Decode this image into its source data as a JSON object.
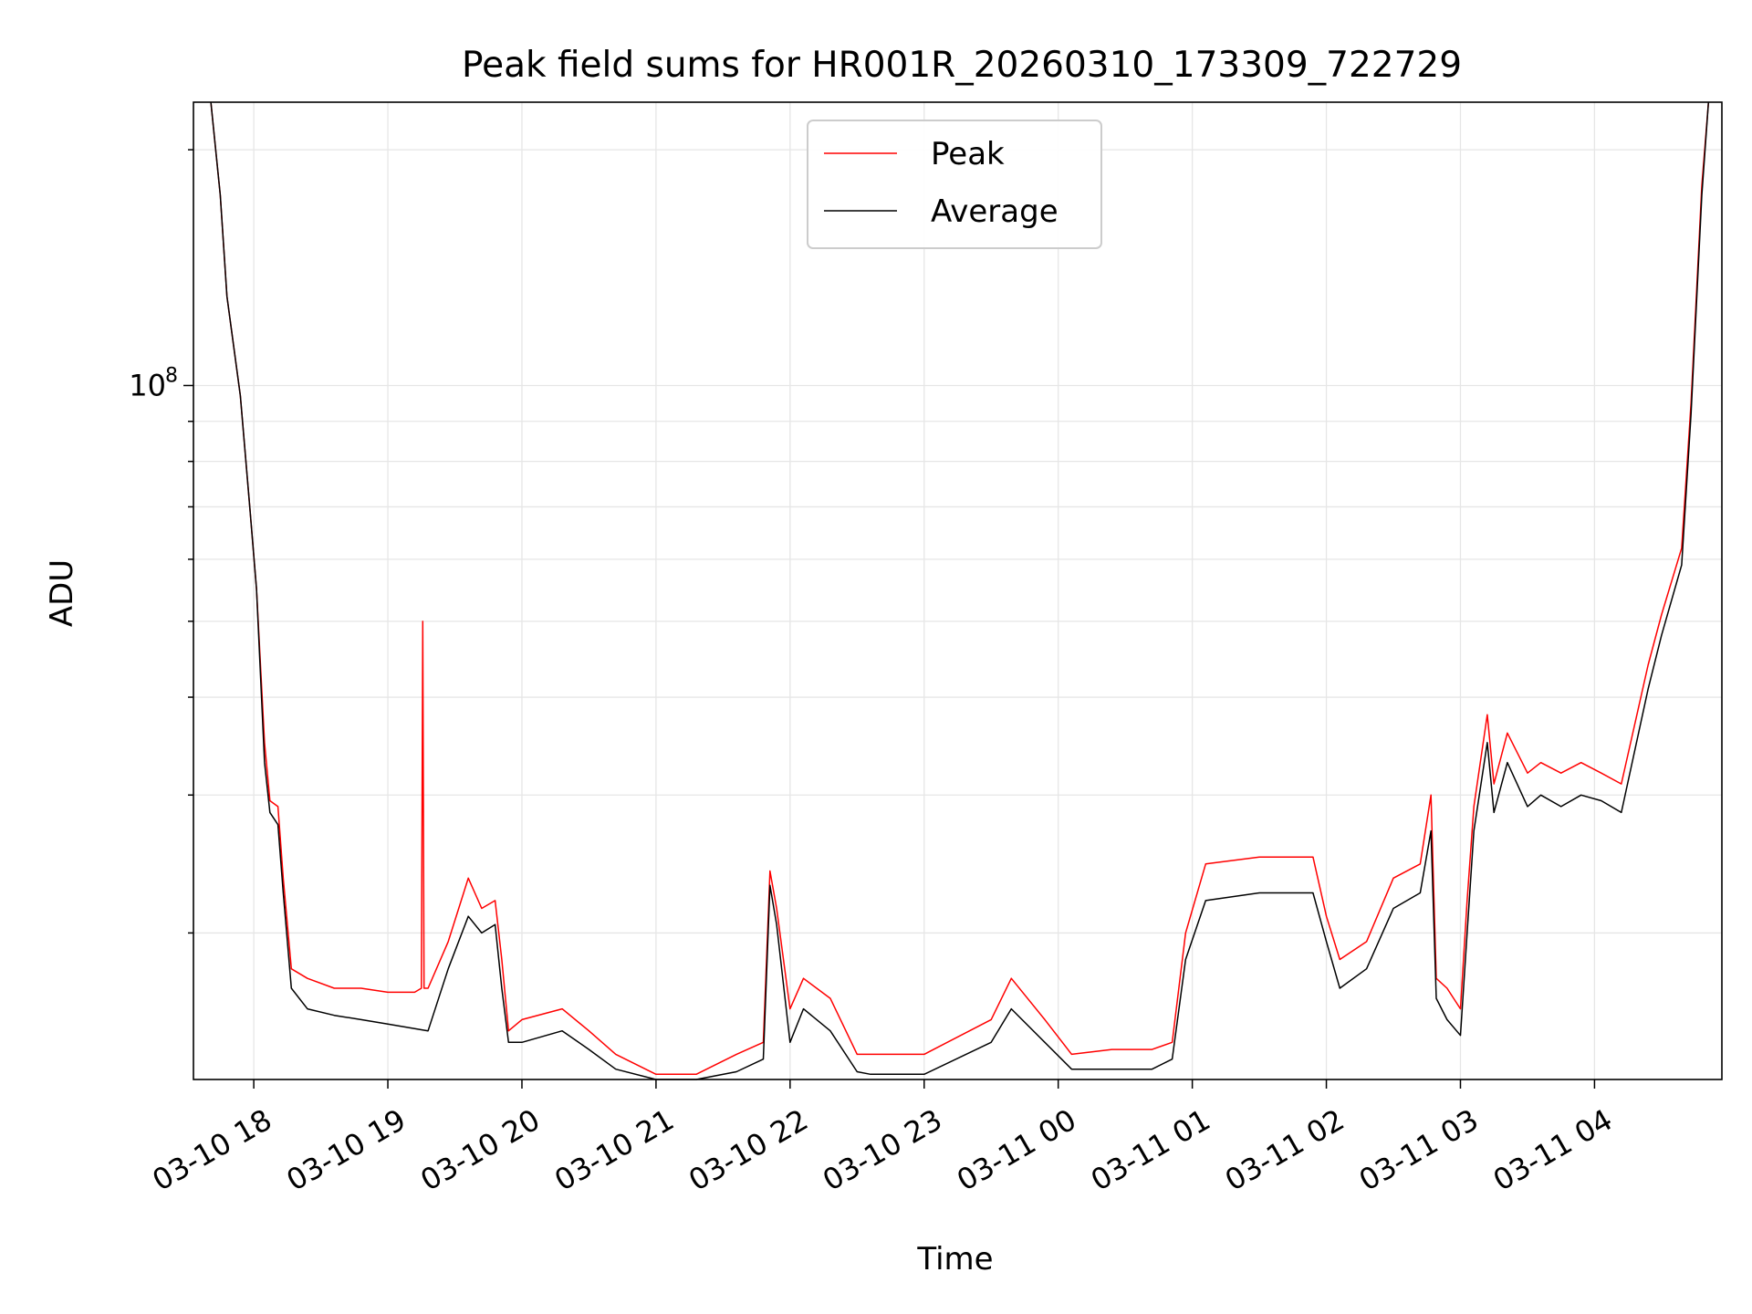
{
  "chart_data": {
    "type": "line",
    "title": "Peak field sums for HR001R_20260310_173309_722729",
    "xlabel": "Time",
    "ylabel": "ADU",
    "yscale": "log",
    "xlim": [
      17.55,
      28.95
    ],
    "ylim": [
      13000000,
      230000000
    ],
    "grid": true,
    "legend_position": "top-center",
    "x_unit": "hours since 03-10 00:00",
    "x_tick_values": [
      18,
      19,
      20,
      21,
      22,
      23,
      24,
      25,
      26,
      27,
      28
    ],
    "x_tick_labels": [
      "03-10 18",
      "03-10 19",
      "03-10 20",
      "03-10 21",
      "03-10 22",
      "03-10 23",
      "03-11 00",
      "03-11 01",
      "03-11 02",
      "03-11 03",
      "03-11 04"
    ],
    "y_major_ticks": [
      {
        "value": 100000000,
        "base": "10",
        "exponent": "8"
      }
    ],
    "y_minor_ticks": [
      20000000,
      30000000,
      40000000,
      50000000,
      60000000,
      70000000,
      80000000,
      90000000,
      200000000
    ],
    "series": [
      {
        "name": "Peak",
        "color": "#ff0000",
        "x": [
          17.68,
          17.75,
          17.8,
          17.9,
          17.97,
          18.02,
          18.08,
          18.12,
          18.18,
          18.22,
          18.28,
          18.4,
          18.6,
          18.8,
          19.0,
          19.2,
          19.25,
          19.26,
          19.27,
          19.3,
          19.45,
          19.6,
          19.7,
          19.8,
          19.85,
          19.9,
          20.0,
          20.3,
          20.5,
          20.7,
          21.0,
          21.3,
          21.6,
          21.8,
          21.85,
          21.9,
          22.0,
          22.1,
          22.3,
          22.5,
          22.6,
          23.0,
          23.5,
          23.65,
          23.9,
          24.1,
          24.4,
          24.7,
          24.85,
          24.95,
          25.1,
          25.5,
          25.9,
          26.0,
          26.1,
          26.3,
          26.5,
          26.7,
          26.78,
          26.82,
          26.9,
          27.0,
          27.05,
          27.1,
          27.2,
          27.25,
          27.35,
          27.5,
          27.6,
          27.75,
          27.9,
          28.05,
          28.2,
          28.4,
          28.5,
          28.65,
          28.72,
          28.8,
          28.85
        ],
        "values": [
          230000000,
          175000000,
          130000000,
          97000000,
          70000000,
          55000000,
          35000000,
          29500000,
          29000000,
          23500000,
          18000000,
          17500000,
          17000000,
          17000000,
          16800000,
          16800000,
          17000000,
          50000000,
          17000000,
          17000000,
          19500000,
          23500000,
          21500000,
          22000000,
          18500000,
          15000000,
          15500000,
          16000000,
          15000000,
          14000000,
          13200000,
          13200000,
          14000000,
          14500000,
          24000000,
          21500000,
          16000000,
          17500000,
          16500000,
          14000000,
          14000000,
          14000000,
          15500000,
          17500000,
          15500000,
          14000000,
          14200000,
          14200000,
          14500000,
          20000000,
          24500000,
          25000000,
          25000000,
          21000000,
          18500000,
          19500000,
          23500000,
          24500000,
          30000000,
          17500000,
          17000000,
          16000000,
          22000000,
          29000000,
          38000000,
          31000000,
          36000000,
          32000000,
          33000000,
          32000000,
          33000000,
          32000000,
          31000000,
          44000000,
          51000000,
          62000000,
          95000000,
          180000000,
          230000000
        ]
      },
      {
        "name": "Average",
        "color": "#000000",
        "x": [
          17.68,
          17.75,
          17.8,
          17.9,
          17.97,
          18.02,
          18.08,
          18.12,
          18.18,
          18.22,
          18.28,
          18.4,
          18.6,
          18.8,
          19.0,
          19.2,
          19.3,
          19.45,
          19.6,
          19.7,
          19.8,
          19.85,
          19.9,
          20.0,
          20.3,
          20.5,
          20.7,
          21.0,
          21.3,
          21.6,
          21.8,
          21.85,
          21.9,
          22.0,
          22.1,
          22.3,
          22.5,
          22.6,
          23.0,
          23.5,
          23.65,
          23.9,
          24.1,
          24.4,
          24.7,
          24.85,
          24.95,
          25.1,
          25.5,
          25.9,
          26.0,
          26.1,
          26.3,
          26.5,
          26.7,
          26.78,
          26.82,
          26.9,
          27.0,
          27.05,
          27.1,
          27.2,
          27.25,
          27.35,
          27.5,
          27.6,
          27.75,
          27.9,
          28.05,
          28.2,
          28.4,
          28.5,
          28.65,
          28.72,
          28.8,
          28.85
        ],
        "values": [
          230000000,
          175000000,
          130000000,
          97000000,
          70000000,
          55000000,
          33000000,
          28500000,
          27500000,
          22500000,
          17000000,
          16000000,
          15700000,
          15500000,
          15300000,
          15100000,
          15000000,
          18000000,
          21000000,
          20000000,
          20500000,
          17000000,
          14500000,
          14500000,
          15000000,
          14200000,
          13400000,
          13000000,
          13000000,
          13300000,
          13800000,
          23000000,
          20500000,
          14500000,
          16000000,
          15000000,
          13300000,
          13200000,
          13200000,
          14500000,
          16000000,
          14500000,
          13400000,
          13400000,
          13400000,
          13800000,
          18500000,
          22000000,
          22500000,
          22500000,
          19500000,
          17000000,
          18000000,
          21500000,
          22500000,
          27000000,
          16500000,
          15500000,
          14800000,
          20000000,
          27000000,
          35000000,
          28500000,
          33000000,
          29000000,
          30000000,
          29000000,
          30000000,
          29500000,
          28500000,
          41000000,
          48000000,
          59000000,
          92000000,
          175000000,
          230000000
        ]
      }
    ]
  }
}
